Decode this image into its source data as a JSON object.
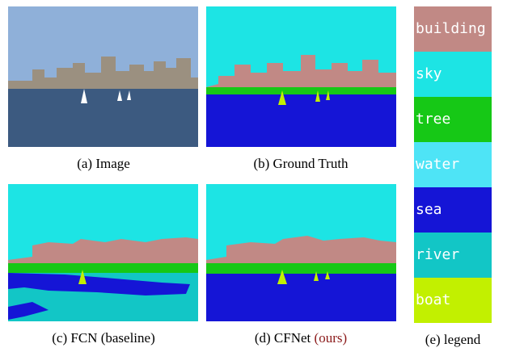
{
  "panels": [
    {
      "caption": "(a) Image"
    },
    {
      "caption": "(b) Ground Truth"
    },
    {
      "caption": "(c) FCN",
      "note": "(baseline)"
    },
    {
      "caption": "(d) CFNet",
      "note": "(ours)"
    }
  ],
  "legend": {
    "caption": "(e) legend",
    "items": [
      {
        "label": "building",
        "color": "#c18985"
      },
      {
        "label": "sky",
        "color": "#1de4e4"
      },
      {
        "label": "tree",
        "color": "#16c816"
      },
      {
        "label": "water",
        "color": "#4ee4f6"
      },
      {
        "label": "sea",
        "color": "#1515d6"
      },
      {
        "label": "river",
        "color": "#12c6c6"
      },
      {
        "label": "boat",
        "color": "#c2f000"
      }
    ]
  }
}
